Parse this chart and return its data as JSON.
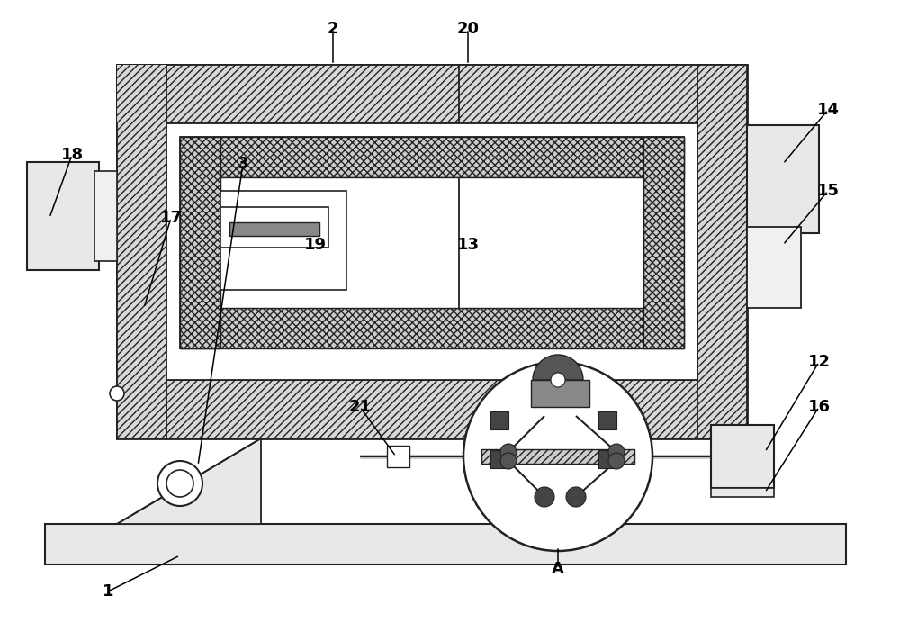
{
  "bg_color": "#ffffff",
  "lc": "#222222",
  "hatch_fc": "#d8d8d8",
  "inner_hatch_fc": "#cccccc",
  "grey_fc": "#e8e8e8",
  "light_grey": "#f0f0f0"
}
